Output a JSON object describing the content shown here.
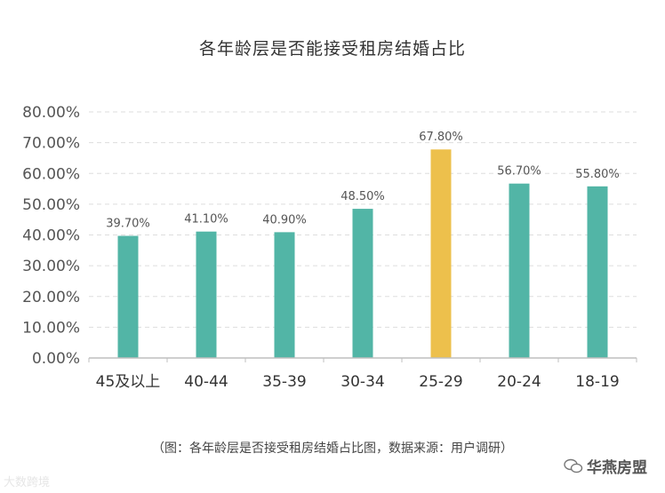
{
  "chart_data": {
    "type": "bar",
    "title": "各年龄层是否能接受租房结婚占比",
    "categories": [
      "45及以上",
      "40-44",
      "35-39",
      "30-34",
      "25-29",
      "20-24",
      "18-19"
    ],
    "values": [
      39.7,
      41.1,
      40.9,
      48.5,
      67.8,
      56.7,
      55.8
    ],
    "data_labels": [
      "39.70%",
      "41.10%",
      "40.90%",
      "48.50%",
      "67.80%",
      "56.70%",
      "55.80%"
    ],
    "y_ticks": [
      "0.00%",
      "10.00%",
      "20.00%",
      "30.00%",
      "40.00%",
      "50.00%",
      "60.00%",
      "70.00%",
      "80.00%"
    ],
    "ylim": [
      0,
      80
    ],
    "grid": true,
    "colors": {
      "default": "#52b5a6",
      "highlight": "#edc04c"
    },
    "highlight_category": "25-29"
  },
  "caption": "（图：各年龄层是否接受租房结婚占比图，数据来源：用户调研）",
  "watermark_left": "大数跨境",
  "watermark_right": "华燕房盟"
}
